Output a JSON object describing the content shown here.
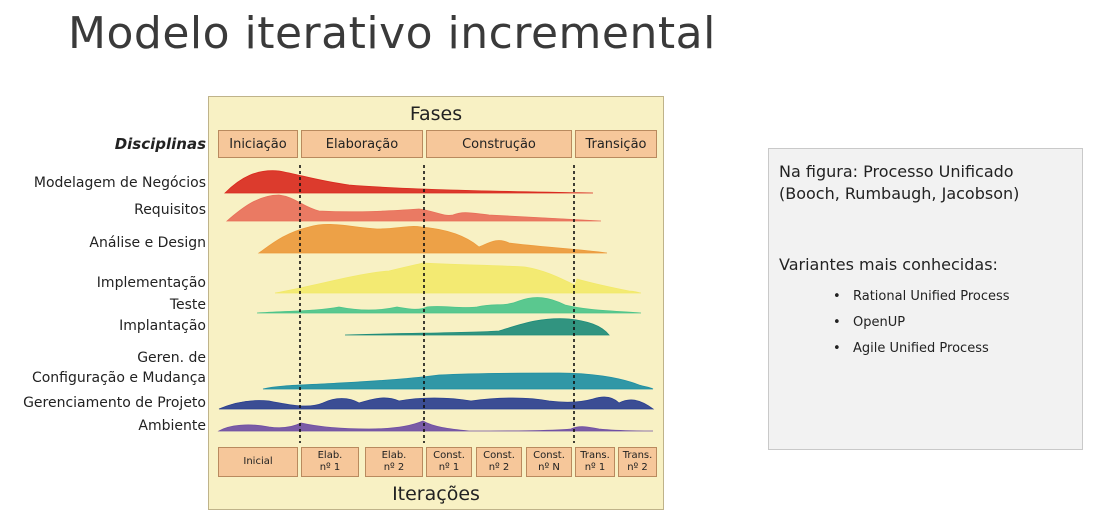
{
  "slide": {
    "title": "Modelo iterativo incremental"
  },
  "figure": {
    "phases_label": "Fases",
    "iterations_label": "Iterações",
    "disciplines_header": "Disciplinas",
    "phases": [
      "Iniciação",
      "Elaboração",
      "Construção",
      "Transição"
    ],
    "disciplines": [
      {
        "name": "Modelagem de Negócios",
        "color": "#d92b1f"
      },
      {
        "name": "Requisitos",
        "color": "#e8705a"
      },
      {
        "name": "Análise e Design",
        "color": "#ec9a3c"
      },
      {
        "name": "Implementação",
        "color": "#f2e96a"
      },
      {
        "name": "Teste",
        "color": "#4cc48a"
      },
      {
        "name": "Implantação",
        "color": "#1f8c7a"
      },
      {
        "name_lines": [
          "Geren. de",
          "Configuração e Mudança"
        ],
        "color": "#1e8fa3"
      },
      {
        "name": "Gerenciamento de Projeto",
        "color": "#2a3f8f"
      },
      {
        "name": "Ambiente",
        "color": "#6f4fa3"
      }
    ],
    "iterations": [
      [
        "Inicial"
      ],
      [
        "Elab.",
        "nº 1"
      ],
      [
        "Elab.",
        "nº 2"
      ],
      [
        "Const.",
        "nº 1"
      ],
      [
        "Const.",
        "nº 2"
      ],
      [
        "Const.",
        "nº N"
      ],
      [
        "Trans.",
        "nº 1"
      ],
      [
        "Trans.",
        "nº 2"
      ]
    ]
  },
  "info": {
    "note": "Na figura: Processo Unificado (Booch, Rumbaugh, Jacobson)",
    "variants_title": "Variantes mais conhecidas:",
    "variants": [
      "Rational Unified Process",
      "OpenUP",
      "Agile Unified Process"
    ]
  }
}
